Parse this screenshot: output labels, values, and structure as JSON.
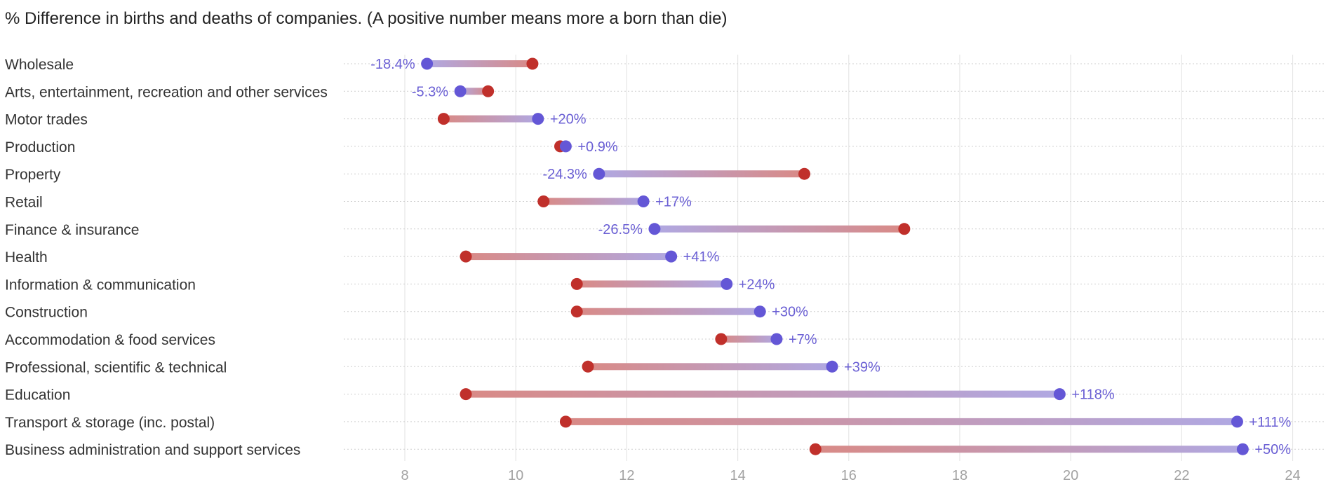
{
  "chart_data": {
    "type": "dumbbell",
    "title": "% Difference in births and deaths of companies. (A positive number means more a born than die)",
    "xlabel": "",
    "ylabel": "",
    "xlim": [
      6.9,
      24.6
    ],
    "x_ticks": [
      8,
      10,
      12,
      14,
      16,
      18,
      20,
      22,
      24
    ],
    "grid": {
      "vertical": true,
      "horizontal_dotted": true
    },
    "colors": {
      "births": "#6457d6",
      "deaths": "#c0302b",
      "births_bar": "#b0a8e2",
      "deaths_bar": "#d98a86",
      "label": "#6a5fd4"
    },
    "rows": [
      {
        "category": "Wholesale",
        "births": 8.4,
        "deaths": 10.3,
        "label": "-18.4%"
      },
      {
        "category": "Arts, entertainment, recreation and other services",
        "births": 9.0,
        "deaths": 9.5,
        "label": "-5.3%"
      },
      {
        "category": "Motor trades",
        "births": 10.4,
        "deaths": 8.7,
        "label": "+20%"
      },
      {
        "category": "Production",
        "births": 10.9,
        "deaths": 10.8,
        "label": "+0.9%"
      },
      {
        "category": "Property",
        "births": 11.5,
        "deaths": 15.2,
        "label": "-24.3%"
      },
      {
        "category": "Retail",
        "births": 12.3,
        "deaths": 10.5,
        "label": "+17%"
      },
      {
        "category": "Finance & insurance",
        "births": 12.5,
        "deaths": 17.0,
        "label": "-26.5%"
      },
      {
        "category": "Health",
        "births": 12.8,
        "deaths": 9.1,
        "label": "+41%"
      },
      {
        "category": "Information & communication",
        "births": 13.8,
        "deaths": 11.1,
        "label": "+24%"
      },
      {
        "category": "Construction",
        "births": 14.4,
        "deaths": 11.1,
        "label": "+30%"
      },
      {
        "category": "Accommodation & food services",
        "births": 14.7,
        "deaths": 13.7,
        "label": "+7%"
      },
      {
        "category": "Professional, scientific & technical",
        "births": 15.7,
        "deaths": 11.3,
        "label": "+39%"
      },
      {
        "category": "Education",
        "births": 19.8,
        "deaths": 9.1,
        "label": "+118%"
      },
      {
        "category": "Transport & storage (inc. postal)",
        "births": 23.0,
        "deaths": 10.9,
        "label": "+111%"
      },
      {
        "category": "Business administration and support services",
        "births": 23.1,
        "deaths": 15.4,
        "label": "+50%"
      }
    ]
  }
}
